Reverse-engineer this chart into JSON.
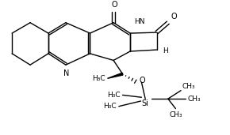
{
  "bg_color": "#ffffff",
  "lw": 1.0,
  "fs": 6.5,
  "figsize": [
    2.9,
    1.71
  ],
  "dpi": 100,
  "xlim": [
    0,
    290
  ],
  "ylim": [
    0,
    171
  ]
}
